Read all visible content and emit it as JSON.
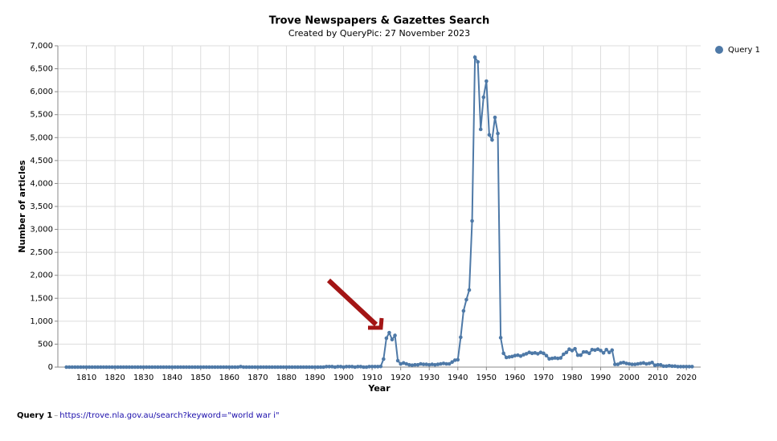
{
  "chart_data": {
    "type": "line",
    "title": "Trove Newspapers & Gazettes Search",
    "subtitle": "Created by QueryPic: 27 November 2023",
    "x_label": "Year",
    "y_label": "Number of articles",
    "xlim": [
      1800,
      2025
    ],
    "ylim": [
      0,
      7000
    ],
    "xticks": [
      1810,
      1820,
      1830,
      1840,
      1850,
      1860,
      1870,
      1880,
      1890,
      1900,
      1910,
      1920,
      1930,
      1940,
      1950,
      1960,
      1970,
      1980,
      1990,
      2000,
      2010,
      2020
    ],
    "yticks": [
      0,
      500,
      {
        "value": 1000,
        "label": "1,000"
      },
      {
        "value": 1500,
        "label": "1,500"
      },
      {
        "value": 2000,
        "label": "2,000"
      },
      {
        "value": 2500,
        "label": "2,500"
      },
      {
        "value": 3000,
        "label": "3,000"
      },
      {
        "value": 3500,
        "label": "3,500"
      },
      {
        "value": 4000,
        "label": "4,000"
      },
      {
        "value": 4500,
        "label": "4,500"
      },
      {
        "value": 5000,
        "label": "5,000"
      },
      {
        "value": 5500,
        "label": "5,500"
      },
      {
        "value": 6000,
        "label": "6,000"
      },
      {
        "value": 6500,
        "label": "6,500"
      },
      {
        "value": 7000,
        "label": "7,000"
      }
    ],
    "grid": true,
    "legend": "top-right",
    "x": [
      1803,
      1804,
      1805,
      1806,
      1807,
      1808,
      1809,
      1810,
      1811,
      1812,
      1813,
      1814,
      1815,
      1816,
      1817,
      1818,
      1819,
      1820,
      1821,
      1822,
      1823,
      1824,
      1825,
      1826,
      1827,
      1828,
      1829,
      1830,
      1831,
      1832,
      1833,
      1834,
      1835,
      1836,
      1837,
      1838,
      1839,
      1840,
      1841,
      1842,
      1843,
      1844,
      1845,
      1846,
      1847,
      1848,
      1849,
      1850,
      1851,
      1852,
      1853,
      1854,
      1855,
      1856,
      1857,
      1858,
      1859,
      1860,
      1861,
      1862,
      1863,
      1864,
      1865,
      1866,
      1867,
      1868,
      1869,
      1870,
      1871,
      1872,
      1873,
      1874,
      1875,
      1876,
      1877,
      1878,
      1879,
      1880,
      1881,
      1882,
      1883,
      1884,
      1885,
      1886,
      1887,
      1888,
      1889,
      1890,
      1891,
      1892,
      1893,
      1894,
      1895,
      1896,
      1897,
      1898,
      1899,
      1900,
      1901,
      1902,
      1903,
      1904,
      1905,
      1906,
      1907,
      1908,
      1909,
      1910,
      1911,
      1912,
      1913,
      1914,
      1915,
      1916,
      1917,
      1918,
      1919,
      1920,
      1921,
      1922,
      1923,
      1924,
      1925,
      1926,
      1927,
      1928,
      1929,
      1930,
      1931,
      1932,
      1933,
      1934,
      1935,
      1936,
      1937,
      1938,
      1939,
      1940,
      1941,
      1942,
      1943,
      1944,
      1945,
      1946,
      1947,
      1948,
      1949,
      1950,
      1951,
      1952,
      1953,
      1954,
      1955,
      1956,
      1957,
      1958,
      1959,
      1960,
      1961,
      1962,
      1963,
      1964,
      1965,
      1966,
      1967,
      1968,
      1969,
      1970,
      1971,
      1972,
      1973,
      1974,
      1975,
      1976,
      1977,
      1978,
      1979,
      1980,
      1981,
      1982,
      1983,
      1984,
      1985,
      1986,
      1987,
      1988,
      1989,
      1990,
      1991,
      1992,
      1993,
      1994,
      1995,
      1996,
      1997,
      1998,
      1999,
      2000,
      2001,
      2002,
      2003,
      2004,
      2005,
      2006,
      2007,
      2008,
      2009,
      2010,
      2011,
      2012,
      2013,
      2014,
      2015,
      2016,
      2017,
      2018,
      2019,
      2020,
      2021,
      2022
    ],
    "series": [
      {
        "name": "Query 1",
        "color": "#4e79a7",
        "values": [
          0,
          0,
          0,
          0,
          0,
          0,
          0,
          0,
          0,
          0,
          0,
          0,
          0,
          0,
          0,
          0,
          0,
          0,
          0,
          0,
          0,
          0,
          0,
          0,
          0,
          0,
          0,
          0,
          0,
          0,
          0,
          0,
          0,
          0,
          0,
          0,
          0,
          0,
          0,
          0,
          0,
          0,
          0,
          0,
          0,
          0,
          0,
          0,
          0,
          0,
          0,
          0,
          0,
          0,
          0,
          0,
          0,
          0,
          0,
          0,
          0,
          10,
          0,
          0,
          0,
          0,
          0,
          0,
          0,
          0,
          0,
          0,
          0,
          0,
          0,
          0,
          0,
          0,
          0,
          0,
          0,
          0,
          0,
          0,
          0,
          0,
          0,
          0,
          0,
          0,
          0,
          10,
          10,
          10,
          0,
          10,
          10,
          0,
          10,
          10,
          10,
          0,
          10,
          10,
          0,
          0,
          10,
          10,
          10,
          10,
          15,
          175,
          630,
          750,
          600,
          690,
          140,
          70,
          90,
          70,
          50,
          40,
          50,
          50,
          70,
          60,
          60,
          50,
          60,
          50,
          60,
          70,
          80,
          70,
          70,
          110,
          150,
          160,
          650,
          1225,
          1470,
          1680,
          3185,
          6750,
          6650,
          5180,
          5880,
          6230,
          5060,
          4950,
          5440,
          5090,
          640,
          300,
          210,
          220,
          230,
          250,
          260,
          240,
          270,
          290,
          320,
          300,
          310,
          290,
          320,
          300,
          250,
          180,
          190,
          200,
          190,
          200,
          280,
          320,
          390,
          360,
          400,
          260,
          260,
          330,
          330,
          300,
          380,
          370,
          390,
          360,
          310,
          380,
          320,
          370,
          60,
          60,
          90,
          100,
          80,
          70,
          60,
          60,
          70,
          80,
          90,
          70,
          80,
          100,
          40,
          50,
          50,
          20,
          20,
          30,
          20,
          20,
          10,
          10,
          10,
          10,
          10,
          10
        ]
      }
    ]
  },
  "footer": {
    "query": "Query 1",
    "separator": "–",
    "url": "https://trove.nla.gov.au/search?keyword=\"world war i\""
  }
}
